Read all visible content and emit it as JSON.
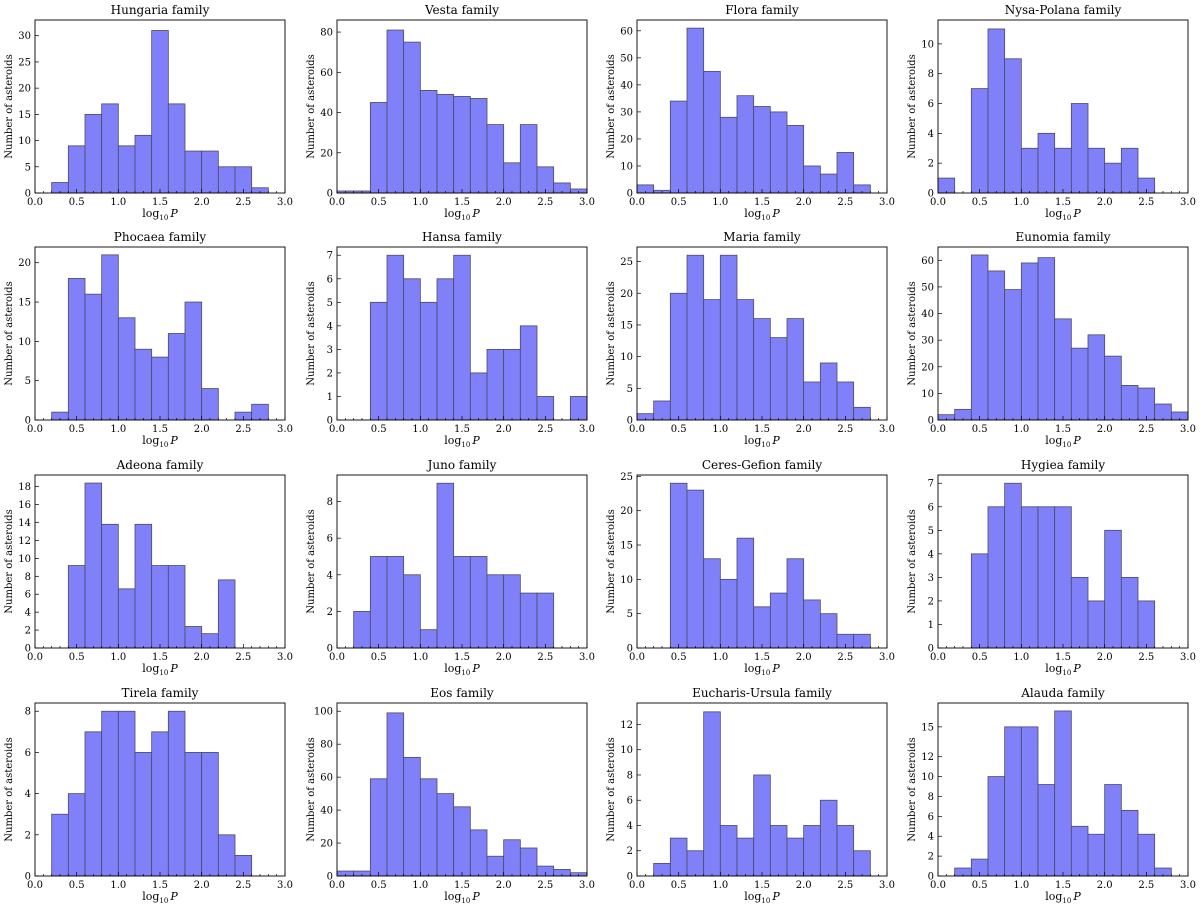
{
  "common": {
    "xlabel": "log",
    "xlabel_sub": "10",
    "xlabel_var": "P",
    "ylabel": "Number of asteroids",
    "xlim": [
      0,
      3
    ],
    "xticks": [
      "0.0",
      "0.5",
      "1.0",
      "1.5",
      "2.0",
      "2.5",
      "3.0"
    ],
    "bin_width": 0.2,
    "bar_color": "#8080f8",
    "edge_color": "#4a4a6a"
  },
  "chart_data": [
    {
      "type": "bar",
      "title": "Hungaria family",
      "ylim": [
        0,
        33
      ],
      "yticks": [
        0,
        5,
        10,
        15,
        20,
        25,
        30
      ],
      "bins": [
        {
          "x": 0.2,
          "v": 2
        },
        {
          "x": 0.4,
          "v": 9
        },
        {
          "x": 0.6,
          "v": 15
        },
        {
          "x": 0.8,
          "v": 17
        },
        {
          "x": 1.0,
          "v": 9
        },
        {
          "x": 1.2,
          "v": 11
        },
        {
          "x": 1.4,
          "v": 31
        },
        {
          "x": 1.6,
          "v": 17
        },
        {
          "x": 1.8,
          "v": 8
        },
        {
          "x": 2.0,
          "v": 8
        },
        {
          "x": 2.2,
          "v": 5
        },
        {
          "x": 2.4,
          "v": 5
        },
        {
          "x": 2.6,
          "v": 1
        }
      ]
    },
    {
      "type": "bar",
      "title": "Vesta family",
      "ylim": [
        0,
        86
      ],
      "yticks": [
        0,
        20,
        40,
        60,
        80
      ],
      "bins": [
        {
          "x": 0.0,
          "v": 1
        },
        {
          "x": 0.2,
          "v": 1
        },
        {
          "x": 0.4,
          "v": 45
        },
        {
          "x": 0.6,
          "v": 81
        },
        {
          "x": 0.8,
          "v": 75
        },
        {
          "x": 1.0,
          "v": 51
        },
        {
          "x": 1.2,
          "v": 49
        },
        {
          "x": 1.4,
          "v": 48
        },
        {
          "x": 1.6,
          "v": 47
        },
        {
          "x": 1.8,
          "v": 34
        },
        {
          "x": 2.0,
          "v": 15
        },
        {
          "x": 2.2,
          "v": 34
        },
        {
          "x": 2.4,
          "v": 13
        },
        {
          "x": 2.6,
          "v": 5
        },
        {
          "x": 2.8,
          "v": 2
        }
      ]
    },
    {
      "type": "bar",
      "title": "Flora family",
      "ylim": [
        0,
        64
      ],
      "yticks": [
        0,
        10,
        20,
        30,
        40,
        50,
        60
      ],
      "bins": [
        {
          "x": 0.0,
          "v": 3
        },
        {
          "x": 0.2,
          "v": 1
        },
        {
          "x": 0.4,
          "v": 34
        },
        {
          "x": 0.6,
          "v": 61
        },
        {
          "x": 0.8,
          "v": 45
        },
        {
          "x": 1.0,
          "v": 28
        },
        {
          "x": 1.2,
          "v": 36
        },
        {
          "x": 1.4,
          "v": 32
        },
        {
          "x": 1.6,
          "v": 30
        },
        {
          "x": 1.8,
          "v": 25
        },
        {
          "x": 2.0,
          "v": 10
        },
        {
          "x": 2.2,
          "v": 7
        },
        {
          "x": 2.4,
          "v": 15
        },
        {
          "x": 2.6,
          "v": 3
        }
      ]
    },
    {
      "type": "bar",
      "title": "Nysa-Polana family",
      "ylim": [
        0,
        11.6
      ],
      "yticks": [
        0,
        2,
        4,
        6,
        8,
        10
      ],
      "bins": [
        {
          "x": 0.0,
          "v": 1
        },
        {
          "x": 0.4,
          "v": 7
        },
        {
          "x": 0.6,
          "v": 11
        },
        {
          "x": 0.8,
          "v": 9
        },
        {
          "x": 1.0,
          "v": 3
        },
        {
          "x": 1.2,
          "v": 4
        },
        {
          "x": 1.4,
          "v": 3
        },
        {
          "x": 1.6,
          "v": 6
        },
        {
          "x": 1.8,
          "v": 3
        },
        {
          "x": 2.0,
          "v": 2
        },
        {
          "x": 2.2,
          "v": 3
        },
        {
          "x": 2.4,
          "v": 1
        }
      ]
    },
    {
      "type": "bar",
      "title": "Phocaea family",
      "ylim": [
        0,
        22
      ],
      "yticks": [
        0,
        5,
        10,
        15,
        20
      ],
      "bins": [
        {
          "x": 0.2,
          "v": 1
        },
        {
          "x": 0.4,
          "v": 18
        },
        {
          "x": 0.6,
          "v": 16
        },
        {
          "x": 0.8,
          "v": 21
        },
        {
          "x": 1.0,
          "v": 13
        },
        {
          "x": 1.2,
          "v": 9
        },
        {
          "x": 1.4,
          "v": 8
        },
        {
          "x": 1.6,
          "v": 11
        },
        {
          "x": 1.8,
          "v": 15
        },
        {
          "x": 2.0,
          "v": 4
        },
        {
          "x": 2.4,
          "v": 1
        },
        {
          "x": 2.6,
          "v": 2
        }
      ]
    },
    {
      "type": "bar",
      "title": "Hansa family",
      "ylim": [
        0,
        7.35
      ],
      "yticks": [
        0,
        1,
        2,
        3,
        4,
        5,
        6,
        7
      ],
      "bins": [
        {
          "x": 0.4,
          "v": 5
        },
        {
          "x": 0.6,
          "v": 7
        },
        {
          "x": 0.8,
          "v": 6
        },
        {
          "x": 1.0,
          "v": 5
        },
        {
          "x": 1.2,
          "v": 6
        },
        {
          "x": 1.4,
          "v": 7
        },
        {
          "x": 1.6,
          "v": 2
        },
        {
          "x": 1.8,
          "v": 3
        },
        {
          "x": 2.0,
          "v": 3
        },
        {
          "x": 2.2,
          "v": 4
        },
        {
          "x": 2.4,
          "v": 1
        },
        {
          "x": 2.8,
          "v": 1
        }
      ]
    },
    {
      "type": "bar",
      "title": "Maria family",
      "ylim": [
        0,
        27.3
      ],
      "yticks": [
        0,
        5,
        10,
        15,
        20,
        25
      ],
      "bins": [
        {
          "x": 0.0,
          "v": 1
        },
        {
          "x": 0.2,
          "v": 3
        },
        {
          "x": 0.4,
          "v": 20
        },
        {
          "x": 0.6,
          "v": 26
        },
        {
          "x": 0.8,
          "v": 19
        },
        {
          "x": 1.0,
          "v": 26
        },
        {
          "x": 1.2,
          "v": 19
        },
        {
          "x": 1.4,
          "v": 16
        },
        {
          "x": 1.6,
          "v": 13
        },
        {
          "x": 1.8,
          "v": 16
        },
        {
          "x": 2.0,
          "v": 6
        },
        {
          "x": 2.2,
          "v": 9
        },
        {
          "x": 2.4,
          "v": 6
        },
        {
          "x": 2.6,
          "v": 2
        }
      ]
    },
    {
      "type": "bar",
      "title": "Eunomia family",
      "ylim": [
        0,
        65
      ],
      "yticks": [
        0,
        10,
        20,
        30,
        40,
        50,
        60
      ],
      "bins": [
        {
          "x": 0.0,
          "v": 2
        },
        {
          "x": 0.2,
          "v": 4
        },
        {
          "x": 0.4,
          "v": 62
        },
        {
          "x": 0.6,
          "v": 56
        },
        {
          "x": 0.8,
          "v": 49
        },
        {
          "x": 1.0,
          "v": 59
        },
        {
          "x": 1.2,
          "v": 61
        },
        {
          "x": 1.4,
          "v": 38
        },
        {
          "x": 1.6,
          "v": 27
        },
        {
          "x": 1.8,
          "v": 32
        },
        {
          "x": 2.0,
          "v": 24
        },
        {
          "x": 2.2,
          "v": 13
        },
        {
          "x": 2.4,
          "v": 12
        },
        {
          "x": 2.6,
          "v": 6
        },
        {
          "x": 2.8,
          "v": 3
        }
      ]
    },
    {
      "type": "bar",
      "title": "Adeona family",
      "ylim": [
        0,
        19.3
      ],
      "yticks": [
        0,
        2,
        4,
        6,
        8,
        10,
        12,
        14,
        16,
        18
      ],
      "bins": [
        {
          "x": 0.4,
          "v": 9.2
        },
        {
          "x": 0.6,
          "v": 18.4
        },
        {
          "x": 0.8,
          "v": 13.8
        },
        {
          "x": 1.0,
          "v": 6.6
        },
        {
          "x": 1.2,
          "v": 13.8
        },
        {
          "x": 1.4,
          "v": 9.2
        },
        {
          "x": 1.6,
          "v": 9.2
        },
        {
          "x": 1.8,
          "v": 2.4
        },
        {
          "x": 2.0,
          "v": 1.6
        },
        {
          "x": 2.2,
          "v": 7.6
        }
      ]
    },
    {
      "type": "bar",
      "title": "Juno family",
      "ylim": [
        0,
        9.45
      ],
      "yticks": [
        0,
        2,
        4,
        6,
        8
      ],
      "bins": [
        {
          "x": 0.2,
          "v": 2
        },
        {
          "x": 0.4,
          "v": 5
        },
        {
          "x": 0.6,
          "v": 5
        },
        {
          "x": 0.8,
          "v": 4
        },
        {
          "x": 1.0,
          "v": 1
        },
        {
          "x": 1.2,
          "v": 9
        },
        {
          "x": 1.4,
          "v": 5
        },
        {
          "x": 1.6,
          "v": 5
        },
        {
          "x": 1.8,
          "v": 4
        },
        {
          "x": 2.0,
          "v": 4
        },
        {
          "x": 2.2,
          "v": 3
        },
        {
          "x": 2.4,
          "v": 3
        }
      ]
    },
    {
      "type": "bar",
      "title": "Ceres-Gefion family",
      "ylim": [
        0,
        25.2
      ],
      "yticks": [
        0,
        5,
        10,
        15,
        20,
        25
      ],
      "bins": [
        {
          "x": 0.4,
          "v": 24
        },
        {
          "x": 0.6,
          "v": 23
        },
        {
          "x": 0.8,
          "v": 13
        },
        {
          "x": 1.0,
          "v": 10
        },
        {
          "x": 1.2,
          "v": 16
        },
        {
          "x": 1.4,
          "v": 6
        },
        {
          "x": 1.6,
          "v": 8
        },
        {
          "x": 1.8,
          "v": 13
        },
        {
          "x": 2.0,
          "v": 7
        },
        {
          "x": 2.2,
          "v": 5
        },
        {
          "x": 2.4,
          "v": 2
        },
        {
          "x": 2.6,
          "v": 2
        }
      ]
    },
    {
      "type": "bar",
      "title": "Hygiea family",
      "ylim": [
        0,
        7.35
      ],
      "yticks": [
        0,
        1,
        2,
        3,
        4,
        5,
        6,
        7
      ],
      "bins": [
        {
          "x": 0.4,
          "v": 4
        },
        {
          "x": 0.6,
          "v": 6
        },
        {
          "x": 0.8,
          "v": 7
        },
        {
          "x": 1.0,
          "v": 6
        },
        {
          "x": 1.2,
          "v": 6
        },
        {
          "x": 1.4,
          "v": 6
        },
        {
          "x": 1.6,
          "v": 3
        },
        {
          "x": 1.8,
          "v": 2
        },
        {
          "x": 2.0,
          "v": 5
        },
        {
          "x": 2.2,
          "v": 3
        },
        {
          "x": 2.4,
          "v": 2
        }
      ]
    },
    {
      "type": "bar",
      "title": "Tirela family",
      "ylim": [
        0,
        8.4
      ],
      "yticks": [
        0,
        2,
        4,
        6,
        8
      ],
      "bins": [
        {
          "x": 0.2,
          "v": 3
        },
        {
          "x": 0.4,
          "v": 4
        },
        {
          "x": 0.6,
          "v": 7
        },
        {
          "x": 0.8,
          "v": 8
        },
        {
          "x": 1.0,
          "v": 8
        },
        {
          "x": 1.2,
          "v": 6
        },
        {
          "x": 1.4,
          "v": 7
        },
        {
          "x": 1.6,
          "v": 8
        },
        {
          "x": 1.8,
          "v": 6
        },
        {
          "x": 2.0,
          "v": 6
        },
        {
          "x": 2.2,
          "v": 2
        },
        {
          "x": 2.4,
          "v": 1
        }
      ]
    },
    {
      "type": "bar",
      "title": "Eos family",
      "ylim": [
        0,
        105
      ],
      "yticks": [
        0,
        20,
        40,
        60,
        80,
        100
      ],
      "bins": [
        {
          "x": 0.0,
          "v": 3
        },
        {
          "x": 0.2,
          "v": 3
        },
        {
          "x": 0.4,
          "v": 59
        },
        {
          "x": 0.6,
          "v": 99
        },
        {
          "x": 0.8,
          "v": 72
        },
        {
          "x": 1.0,
          "v": 59
        },
        {
          "x": 1.2,
          "v": 50
        },
        {
          "x": 1.4,
          "v": 42
        },
        {
          "x": 1.6,
          "v": 28
        },
        {
          "x": 1.8,
          "v": 12
        },
        {
          "x": 2.0,
          "v": 22
        },
        {
          "x": 2.2,
          "v": 17
        },
        {
          "x": 2.4,
          "v": 6
        },
        {
          "x": 2.6,
          "v": 4
        },
        {
          "x": 2.8,
          "v": 2
        }
      ]
    },
    {
      "type": "bar",
      "title": "Eucharis-Ursula family",
      "ylim": [
        0,
        13.7
      ],
      "yticks": [
        0,
        2,
        4,
        6,
        8,
        10,
        12
      ],
      "bins": [
        {
          "x": 0.2,
          "v": 1
        },
        {
          "x": 0.4,
          "v": 3
        },
        {
          "x": 0.6,
          "v": 2
        },
        {
          "x": 0.8,
          "v": 13
        },
        {
          "x": 1.0,
          "v": 4
        },
        {
          "x": 1.2,
          "v": 3
        },
        {
          "x": 1.4,
          "v": 8
        },
        {
          "x": 1.6,
          "v": 4
        },
        {
          "x": 1.8,
          "v": 3
        },
        {
          "x": 2.0,
          "v": 4
        },
        {
          "x": 2.2,
          "v": 6
        },
        {
          "x": 2.4,
          "v": 4
        },
        {
          "x": 2.6,
          "v": 2
        }
      ]
    },
    {
      "type": "bar",
      "title": "Alauda family",
      "ylim": [
        0,
        17.4
      ],
      "yticks": [
        0,
        2,
        4,
        6,
        8,
        10,
        12,
        15
      ],
      "bins": [
        {
          "x": 0.2,
          "v": 0.8
        },
        {
          "x": 0.4,
          "v": 1.7
        },
        {
          "x": 0.6,
          "v": 10
        },
        {
          "x": 0.8,
          "v": 15
        },
        {
          "x": 1.0,
          "v": 15
        },
        {
          "x": 1.2,
          "v": 9.2
        },
        {
          "x": 1.4,
          "v": 16.6
        },
        {
          "x": 1.6,
          "v": 5
        },
        {
          "x": 1.8,
          "v": 4.2
        },
        {
          "x": 2.0,
          "v": 9.2
        },
        {
          "x": 2.2,
          "v": 6.6
        },
        {
          "x": 2.4,
          "v": 4.2
        },
        {
          "x": 2.6,
          "v": 0.8
        }
      ]
    }
  ]
}
